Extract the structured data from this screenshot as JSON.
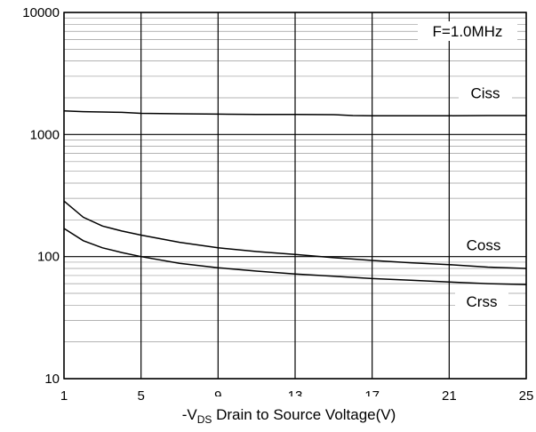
{
  "chart_data": {
    "type": "line",
    "xlabel_prefix": "-V",
    "xlabel_sub": "DS",
    "xlabel_suffix": " Drain to Source Voltage(V)",
    "ylabel": "",
    "xlim": [
      1,
      25
    ],
    "ylim": [
      10,
      10000
    ],
    "y_scale": "log",
    "x_ticks": [
      1,
      5,
      9,
      13,
      17,
      21,
      25
    ],
    "x_tick_labels": [
      "1",
      "5",
      "9",
      "13",
      "17",
      "21",
      "25"
    ],
    "y_ticks": [
      10,
      100,
      1000,
      10000
    ],
    "y_tick_labels": [
      "10",
      "100",
      "1000",
      "10000"
    ],
    "grid": true,
    "annotation": "F=1.0MHz",
    "series": [
      {
        "name": "Ciss",
        "x": [
          1,
          2,
          3,
          4,
          5,
          7,
          9,
          11,
          13,
          15,
          16,
          17,
          19,
          21,
          23,
          25
        ],
        "y": [
          1560,
          1540,
          1530,
          1520,
          1490,
          1480,
          1470,
          1460,
          1460,
          1455,
          1430,
          1425,
          1425,
          1425,
          1430,
          1430
        ]
      },
      {
        "name": "Coss",
        "x": [
          1,
          2,
          3,
          4,
          5,
          7,
          9,
          11,
          13,
          15,
          17,
          19,
          21,
          23,
          25
        ],
        "y": [
          285,
          210,
          178,
          162,
          150,
          131,
          118,
          110,
          104,
          98,
          93,
          89,
          86,
          82,
          80
        ]
      },
      {
        "name": "Crss",
        "x": [
          1,
          2,
          3,
          4,
          5,
          7,
          9,
          11,
          13,
          15,
          17,
          19,
          21,
          23,
          25
        ],
        "y": [
          170,
          135,
          118,
          108,
          100,
          88,
          81,
          76,
          72,
          69,
          66,
          64,
          62,
          60,
          59
        ]
      }
    ]
  }
}
